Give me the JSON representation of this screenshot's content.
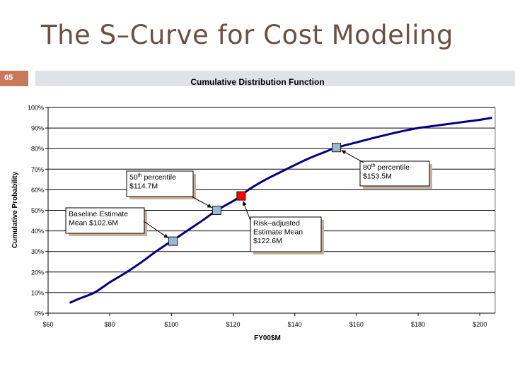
{
  "slide": {
    "title": "The S–Curve for Cost Modeling",
    "number": "65"
  },
  "chart_data": {
    "type": "line",
    "title": "Cumulative Distribution Function",
    "xlabel": "FY00$M",
    "ylabel": "Cumulative Probability",
    "xlim": [
      60,
      205
    ],
    "ylim": [
      0,
      100
    ],
    "x_ticks": [
      "$60",
      "$80",
      "$100",
      "$120",
      "$140",
      "$160",
      "$180",
      "$200"
    ],
    "y_ticks": [
      "0%",
      "10%",
      "20%",
      "30%",
      "40%",
      "50%",
      "60%",
      "70%",
      "80%",
      "90%",
      "100%"
    ],
    "grid": "horizontal",
    "series": [
      {
        "x": [
          67,
          70,
          75,
          80,
          85,
          90,
          95,
          100,
          102.6,
          105,
          110,
          114.7,
          120,
          122.6,
          125,
          130,
          135,
          140,
          145,
          150,
          153.5,
          160,
          165,
          170,
          175,
          180,
          185,
          190,
          195,
          200,
          204
        ],
        "y": [
          5,
          7,
          10,
          15,
          19.5,
          24.5,
          30,
          35,
          37.5,
          40,
          45,
          50,
          54.5,
          57,
          60,
          64.5,
          68.3,
          72,
          75.5,
          78.5,
          80.5,
          83,
          85,
          86.8,
          88.5,
          90,
          91,
          92,
          93,
          94,
          95
        ]
      }
    ],
    "markers": [
      {
        "x": 100.5,
        "y": 35,
        "color": "#9ab7d6",
        "label_lines": [
          "Baseline Estimate",
          "Mean $102.6M"
        ]
      },
      {
        "x": 114.7,
        "y": 50,
        "color": "#9ab7d6",
        "label_lines": [
          "50th percentile",
          "$114.7M"
        ],
        "superscript": "th"
      },
      {
        "x": 122.6,
        "y": 57,
        "color": "#ff0000",
        "label_lines": [
          "Risk–adjusted",
          "Estimate Mean",
          "$122.6M"
        ]
      },
      {
        "x": 153.5,
        "y": 80.5,
        "color": "#9ab7d6",
        "label_lines": [
          "80th percentile",
          "$153.5M"
        ],
        "superscript": "th"
      }
    ],
    "colors": {
      "curve": "#000080",
      "box_shadow": "#c7b299",
      "grid": "#000000"
    }
  }
}
